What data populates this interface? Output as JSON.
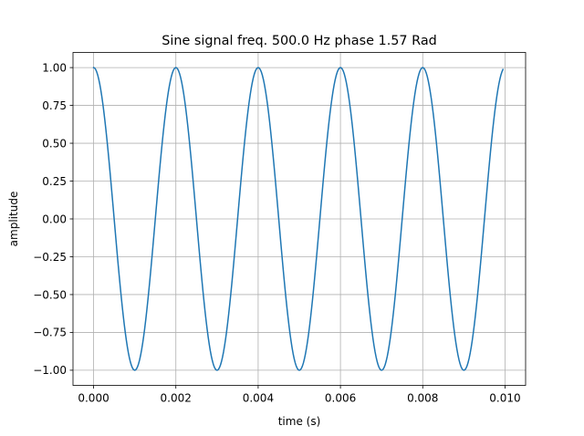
{
  "chart_data": {
    "type": "line",
    "title": "Sine signal freq. 500.0 Hz phase 1.57 Rad",
    "xlabel": "time (s)",
    "ylabel": "amplitude",
    "xlim": [
      -0.0005,
      0.0105
    ],
    "ylim": [
      -1.1,
      1.1
    ],
    "grid": true,
    "legend": "none",
    "x_ticks": [
      0.0,
      0.002,
      0.004,
      0.006,
      0.008,
      0.01
    ],
    "x_tick_labels": [
      "0.000",
      "0.002",
      "0.004",
      "0.006",
      "0.008",
      "0.010"
    ],
    "y_ticks": [
      -1.0,
      -0.75,
      -0.5,
      -0.25,
      0.0,
      0.25,
      0.5,
      0.75,
      1.0
    ],
    "y_tick_labels": [
      "−1.00",
      "−0.75",
      "−0.50",
      "−0.25",
      "0.00",
      "0.25",
      "0.50",
      "0.75",
      "1.00"
    ],
    "series": [
      {
        "color": "#1f77b4",
        "function": "sine",
        "frequency_hz": 500.0,
        "phase_rad": 1.57,
        "amplitude": 1.0,
        "x_start": 0.0,
        "x_end": 0.00995
      }
    ]
  }
}
